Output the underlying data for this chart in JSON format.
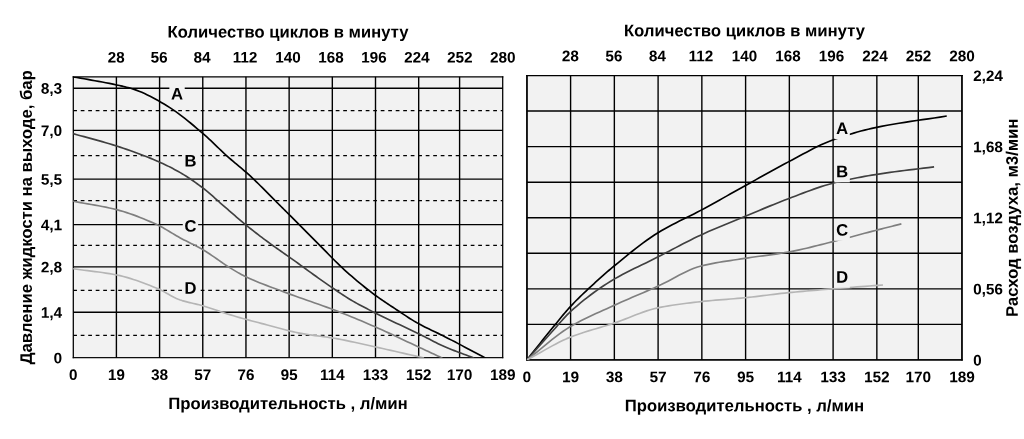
{
  "chart_data": [
    {
      "type": "line",
      "xlabel": "Производительность , л/мин",
      "ylabel": "Давление жидкости на выходе, бар",
      "x2label": "Количество циклов в минуту",
      "xlim": [
        0,
        189
      ],
      "xticks": [
        0,
        19,
        38,
        57,
        76,
        95,
        114,
        133,
        152,
        170,
        189
      ],
      "x2lim": [
        0,
        280
      ],
      "x2ticks": [
        28,
        56,
        84,
        112,
        140,
        168,
        196,
        224,
        252,
        280
      ],
      "ylim": [
        0,
        8.65
      ],
      "yticks": [
        0,
        {
          "value": 1.4,
          "label": "1,4"
        },
        {
          "value": 2.8,
          "label": "2,8"
        },
        {
          "value": 4.1,
          "label": "4,1"
        },
        {
          "value": 5.5,
          "label": "5,5"
        },
        {
          "value": 7.0,
          "label": "7,0"
        },
        {
          "value": 8.3,
          "label": "8,3"
        }
      ],
      "grid": true,
      "ref_lines": [
        {
          "axis": "y",
          "value": 0.692,
          "line_style": "dashed",
          "color": "#000000"
        },
        {
          "axis": "y",
          "value": 2.075,
          "line_style": "dashed",
          "color": "#000000"
        },
        {
          "axis": "y",
          "value": 3.458,
          "line_style": "dashed",
          "color": "#000000"
        },
        {
          "axis": "y",
          "value": 4.842,
          "line_style": "dashed",
          "color": "#000000"
        },
        {
          "axis": "y",
          "value": 6.225,
          "line_style": "dashed",
          "color": "#000000"
        },
        {
          "axis": "y",
          "value": 7.608,
          "line_style": "dashed",
          "color": "#000000"
        }
      ],
      "line_style": "solid",
      "marker": "none",
      "series": [
        {
          "name": "A",
          "color": "#000000",
          "x": [
            0,
            19.1,
            26.5,
            41.2,
            57,
            67.7,
            78,
            88.4,
            95.7,
            107.5,
            119.3,
            132.6,
            141.4,
            151.7,
            163.5,
            181.2
          ],
          "values": [
            8.65,
            8.4,
            8.27,
            7.76,
            6.91,
            6.21,
            5.59,
            4.87,
            4.36,
            3.53,
            2.71,
            1.94,
            1.52,
            1.06,
            0.65,
            0
          ]
        },
        {
          "name": "B",
          "color": "#404040",
          "x": [
            0,
            19.1,
            36.8,
            47.1,
            57,
            66.3,
            75.8,
            85.4,
            95.7,
            109,
            122.2,
            132.6,
            151.7,
            163.5,
            176
          ],
          "values": [
            6.9,
            6.52,
            6.06,
            5.7,
            5.23,
            4.67,
            4.1,
            3.58,
            3.07,
            2.4,
            1.78,
            1.39,
            0.75,
            0.34,
            0
          ]
        },
        {
          "name": "C",
          "color": "#7f7f7f",
          "x": [
            0,
            19.1,
            36.8,
            47.1,
            57,
            69.2,
            75.8,
            94.2,
            114.9,
            132.6,
            151.7,
            162.1
          ],
          "values": [
            4.82,
            4.56,
            4.1,
            3.69,
            3.33,
            2.76,
            2.5,
            1.99,
            1.47,
            0.96,
            0.34,
            0
          ]
        },
        {
          "name": "D",
          "color": "#b5b5b5",
          "x": [
            0,
            19.1,
            36.8,
            47.1,
            57,
            69.2,
            85.4,
            100.2,
            114.9,
            132.6,
            154
          ],
          "values": [
            2.74,
            2.55,
            2.14,
            1.78,
            1.6,
            1.32,
            1.01,
            0.75,
            0.6,
            0.34,
            0
          ]
        }
      ]
    },
    {
      "type": "line",
      "xlabel": "Производительность , л/мин",
      "y2label": "Расход воздуха, м3/мин",
      "x2label": "Количество циклов в минуту",
      "xlim": [
        0,
        189
      ],
      "xticks": [
        0,
        19,
        38,
        57,
        76,
        95,
        114,
        133,
        152,
        170,
        189
      ],
      "x2lim": [
        0,
        280
      ],
      "x2ticks": [
        28,
        56,
        84,
        112,
        140,
        168,
        196,
        224,
        252,
        280
      ],
      "y2lim": [
        0,
        2.24
      ],
      "y2ticks": [
        0,
        {
          "value": 0.28,
          "label": null
        },
        {
          "value": 0.56,
          "label": "0,56"
        },
        {
          "value": 0.84,
          "label": null
        },
        {
          "value": 1.12,
          "label": "1,12"
        },
        {
          "value": 1.4,
          "label": null
        },
        {
          "value": 1.68,
          "label": "1,68"
        },
        {
          "value": 1.96,
          "label": null
        },
        {
          "value": 2.24,
          "label": "2,24"
        }
      ],
      "grid": true,
      "line_style": "solid",
      "marker": "none",
      "series": [
        {
          "name": "A",
          "axis": "y2",
          "color": "#000000",
          "x": [
            0,
            11.6,
            18.9,
            29.1,
            37.9,
            56.8,
            75.7,
            94.6,
            113.6,
            132.5,
            151.4,
            182
          ],
          "values": [
            0,
            0.263,
            0.42,
            0.6,
            0.74,
            1.0,
            1.18,
            1.37,
            1.56,
            1.73,
            1.83,
            1.92
          ]
        },
        {
          "name": "B",
          "axis": "y2",
          "color": "#404040",
          "x": [
            0,
            11.6,
            18.9,
            36.4,
            56.8,
            75.7,
            94.6,
            113.6,
            132.5,
            151.4,
            176.5
          ],
          "values": [
            0,
            0.236,
            0.38,
            0.62,
            0.81,
            0.985,
            1.13,
            1.27,
            1.39,
            1.46,
            1.52
          ]
        },
        {
          "name": "C",
          "axis": "y2",
          "color": "#7f7f7f",
          "x": [
            0,
            18.9,
            37.9,
            56.8,
            75.7,
            94.6,
            113.6,
            132.5,
            151.4,
            162.3
          ],
          "values": [
            0,
            0.263,
            0.43,
            0.58,
            0.74,
            0.8,
            0.85,
            0.93,
            1.02,
            1.07
          ]
        },
        {
          "name": "D",
          "axis": "y2",
          "color": "#b5b5b5",
          "x": [
            0,
            18.9,
            37.9,
            56.8,
            75.7,
            94.6,
            113.6,
            132.5,
            154.3
          ],
          "values": [
            0,
            0.18,
            0.29,
            0.41,
            0.46,
            0.49,
            0.53,
            0.56,
            0.59
          ]
        }
      ]
    }
  ]
}
